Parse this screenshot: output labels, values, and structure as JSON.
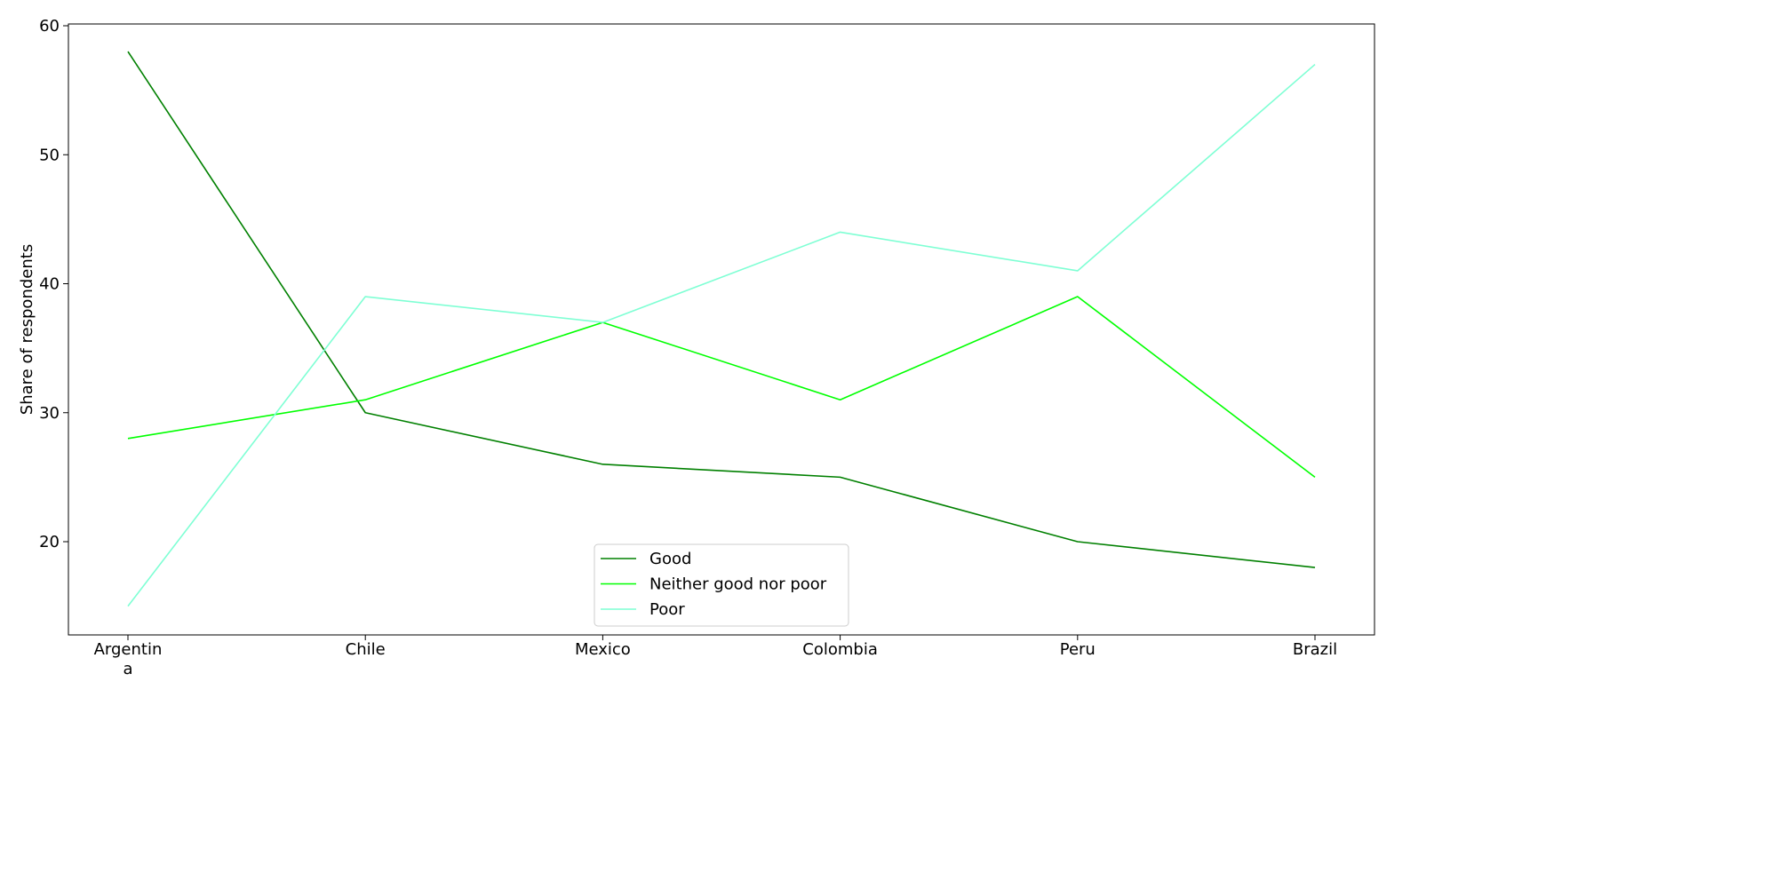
{
  "chart_data": {
    "type": "line",
    "title": "",
    "xlabel": "",
    "ylabel": "Share of respondents",
    "categories": [
      "Argentin\na",
      "Chile",
      "Mexico",
      "Colombia",
      "Peru",
      "Brazil"
    ],
    "ylim": [
      13,
      60
    ],
    "yticks": [
      20,
      30,
      40,
      50,
      60
    ],
    "grid": false,
    "legend_position": "bottom-center",
    "series": [
      {
        "name": "Good",
        "color": "#008000",
        "values": [
          58,
          30,
          26,
          25,
          20,
          18
        ]
      },
      {
        "name": "Neither good nor poor",
        "color": "#00ff00",
        "values": [
          28,
          31,
          37,
          31,
          39,
          25
        ]
      },
      {
        "name": "Poor",
        "color": "#7fffd4",
        "values": [
          15,
          39,
          37,
          44,
          41,
          57
        ]
      }
    ]
  }
}
